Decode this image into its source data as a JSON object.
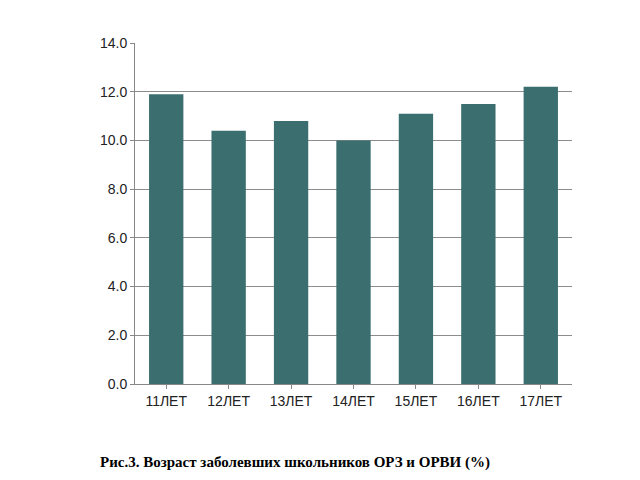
{
  "chart_data": {
    "type": "bar",
    "title": "Рис.3. Возраст заболевших школьников ОРЗ и ОРВИ (%)",
    "categories": [
      "11ЛЕТ",
      "12ЛЕТ",
      "13ЛЕТ",
      "14ЛЕТ",
      "15ЛЕТ",
      "16ЛЕТ",
      "17ЛЕТ"
    ],
    "values": [
      11.9,
      10.4,
      10.8,
      10.0,
      11.1,
      11.5,
      12.2
    ],
    "color": "#3b6e6e",
    "ylim": [
      0,
      14
    ],
    "yticks": [
      {
        "value": 0,
        "label": "0.0"
      },
      {
        "value": 2,
        "label": "2.0"
      },
      {
        "value": 4,
        "label": "4.0"
      },
      {
        "value": 6,
        "label": "6.0"
      },
      {
        "value": 8,
        "label": "8.0"
      },
      {
        "value": 10,
        "label": "10.0"
      },
      {
        "value": 12,
        "label": "12.0"
      },
      {
        "value": 14,
        "label": "14.0"
      }
    ],
    "grid": true
  }
}
